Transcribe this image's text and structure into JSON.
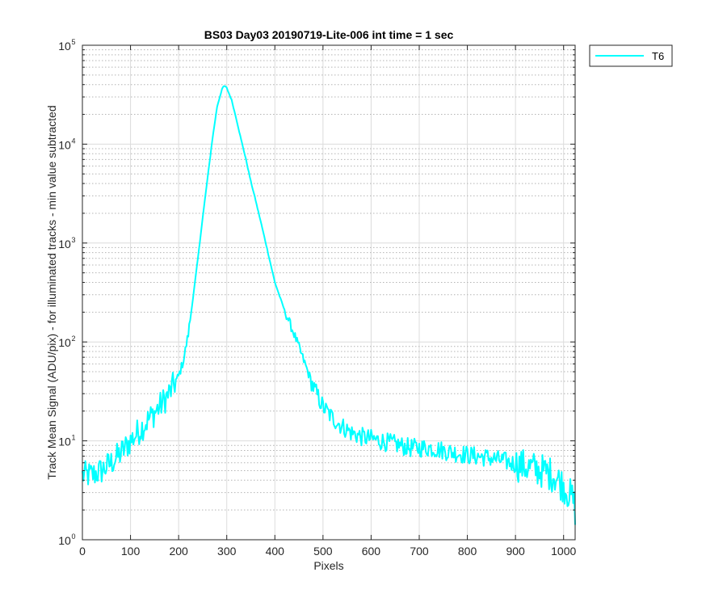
{
  "chart_data": {
    "type": "line",
    "title": "BS03 Day03 20190719-Lite-006 int time = 1 sec",
    "xlabel": "Pixels",
    "ylabel": "Track Mean Signal (ADU/pix) - for illuminated tracks - min value subtracted",
    "xlim": [
      0,
      1024
    ],
    "ylim": [
      1,
      100000
    ],
    "yscale": "log",
    "grid": true,
    "minor_grid": true,
    "xticks": [
      0,
      100,
      200,
      300,
      400,
      500,
      600,
      700,
      800,
      900,
      1000
    ],
    "yticks": [
      {
        "base": "10",
        "exp": "0",
        "value": 1
      },
      {
        "base": "10",
        "exp": "1",
        "value": 10
      },
      {
        "base": "10",
        "exp": "2",
        "value": 100
      },
      {
        "base": "10",
        "exp": "3",
        "value": 1000
      },
      {
        "base": "10",
        "exp": "4",
        "value": 10000
      },
      {
        "base": "10",
        "exp": "5",
        "value": 100000
      }
    ],
    "legend_position": "outside-top-right",
    "series": [
      {
        "name": "T6",
        "color": "#00FFFF",
        "x": [
          0,
          20,
          40,
          60,
          80,
          100,
          120,
          140,
          160,
          180,
          200,
          210,
          220,
          230,
          240,
          250,
          260,
          270,
          280,
          290,
          295,
          300,
          310,
          320,
          330,
          340,
          350,
          360,
          370,
          380,
          390,
          400,
          420,
          440,
          460,
          480,
          500,
          520,
          540,
          560,
          580,
          600,
          620,
          640,
          660,
          680,
          700,
          720,
          740,
          760,
          780,
          800,
          820,
          840,
          860,
          880,
          900,
          920,
          940,
          960,
          980,
          1000,
          1010,
          1020,
          1024
        ],
        "y": [
          4.5,
          4.5,
          5.0,
          6.0,
          7.5,
          10,
          13,
          17,
          22,
          30,
          45,
          65,
          120,
          280,
          700,
          1800,
          4500,
          11000,
          24000,
          36000,
          39000,
          37000,
          28000,
          18000,
          11000,
          7000,
          4200,
          2700,
          1700,
          1050,
          650,
          400,
          210,
          120,
          65,
          35,
          22,
          17,
          14,
          12,
          11,
          10.5,
          10,
          9.5,
          9,
          8.5,
          8.5,
          8.5,
          8.2,
          7.8,
          7.5,
          7.2,
          7.0,
          6.8,
          6.5,
          6.2,
          5.8,
          5.5,
          5.2,
          4.9,
          4.5,
          3.5,
          3.0,
          2.5,
          2.0
        ]
      }
    ]
  }
}
